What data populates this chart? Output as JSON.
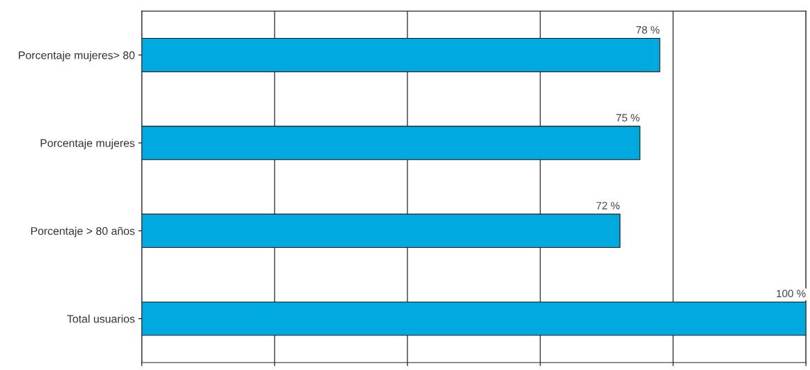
{
  "chart_data": {
    "type": "bar",
    "orientation": "horizontal",
    "categories": [
      "Porcentaje mujeres> 80",
      "Porcentaje mujeres",
      "Porcentaje > 80 años",
      "Total usuarios"
    ],
    "values": [
      78,
      75,
      72,
      100
    ],
    "value_labels": [
      "78 %",
      "75 %",
      "72 %",
      "100 %"
    ],
    "color": "#00a9e0",
    "xlim": [
      0,
      100
    ],
    "xticks": [
      {
        "value": 0,
        "label": null
      },
      {
        "value": 20,
        "label": null
      },
      {
        "value": 40,
        "label": null
      },
      {
        "value": 60,
        "label": null
      },
      {
        "value": 80,
        "label": null
      },
      {
        "value": 100,
        "label": null
      }
    ],
    "tick_labels": "y",
    "grid": "x"
  }
}
